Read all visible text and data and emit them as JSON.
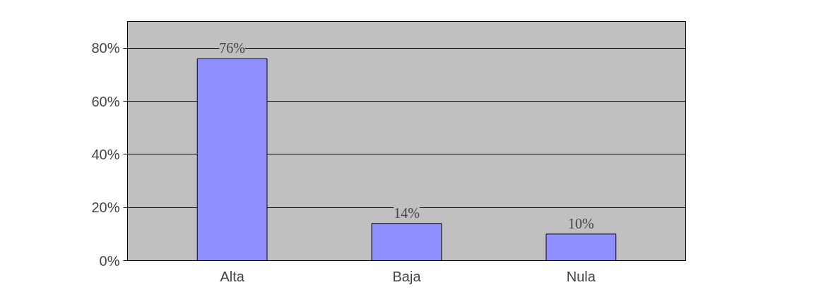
{
  "chart_data": {
    "type": "bar",
    "categories": [
      "Alta",
      "Baja",
      "Nula"
    ],
    "values": [
      76,
      14,
      10
    ],
    "value_labels": [
      "76%",
      "14%",
      "10%"
    ],
    "color": "#8f8fff",
    "ylim": [
      0,
      90
    ],
    "yticks": [
      {
        "value": 0,
        "label": "0%"
      },
      {
        "value": 20,
        "label": "20%"
      },
      {
        "value": 40,
        "label": "40%"
      },
      {
        "value": 60,
        "label": "60%"
      },
      {
        "value": 80,
        "label": "80%"
      }
    ],
    "grid": "y"
  }
}
